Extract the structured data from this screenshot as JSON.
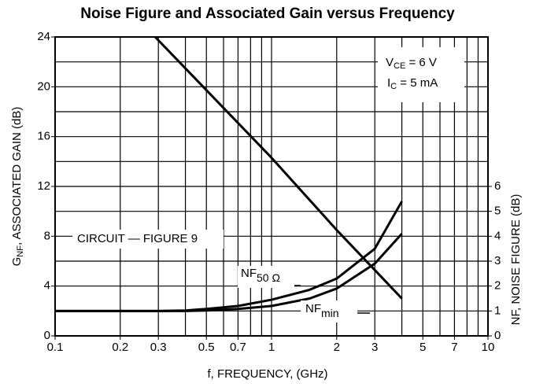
{
  "chart_data": {
    "type": "line",
    "title": "Noise Figure and Associated Gain versus Frequency",
    "xlabel": "f, FREQUENCY, (GHz)",
    "ylabel": {
      "main": "G",
      "sub": "NF",
      "rest": ", ASSOCIATED GAIN (dB)"
    },
    "y2label": "NF, NOISE FIGURE (dB)",
    "xscale": "log",
    "xlim": [
      0.1,
      10
    ],
    "xticks": [
      0.1,
      0.2,
      0.3,
      0.5,
      0.7,
      1,
      2,
      3,
      5,
      7,
      10
    ],
    "xgrid": [
      0.2,
      0.3,
      0.4,
      0.5,
      0.6,
      0.7,
      0.8,
      0.9,
      1,
      2,
      3,
      4,
      5,
      6,
      7,
      8,
      9
    ],
    "ylim": [
      0,
      24
    ],
    "yticks": [
      0,
      4,
      8,
      12,
      16,
      20,
      24
    ],
    "ygrid": [
      2,
      4,
      6,
      8,
      10,
      12,
      14,
      16,
      18,
      20,
      22
    ],
    "y2lim": [
      0,
      12
    ],
    "y2ticks": [
      0,
      1,
      2,
      3,
      4,
      5,
      6
    ],
    "series": [
      {
        "name": "Gain",
        "color": "#000000",
        "x": [
          0.29,
          1,
          2,
          4
        ],
        "values": [
          24,
          14.3,
          8.5,
          3
        ]
      },
      {
        "name": "NF50",
        "color": "#000000",
        "axis": "y2",
        "x": [
          0.1,
          0.2,
          0.3,
          0.4,
          0.5,
          0.7,
          1,
          1.5,
          2,
          3,
          4
        ],
        "values": [
          1,
          1,
          1,
          1.02,
          1.08,
          1.2,
          1.45,
          1.85,
          2.3,
          3.5,
          5.4
        ]
      },
      {
        "name": "NFmin",
        "color": "#000000",
        "axis": "y2",
        "x": [
          0.1,
          0.2,
          0.3,
          0.4,
          0.5,
          0.7,
          1,
          1.5,
          2,
          3,
          4
        ],
        "values": [
          1,
          1,
          1,
          1,
          1.02,
          1.08,
          1.2,
          1.5,
          1.9,
          2.9,
          4.1
        ]
      }
    ],
    "annotations": {
      "vce": {
        "main": "V",
        "sub": "CE",
        "rest": " = 6 V"
      },
      "ic": {
        "main": "I",
        "sub": "C",
        "rest": " = 5 mA"
      },
      "circuit": "CIRCUIT — FIGURE 9",
      "nf50": {
        "main": "NF",
        "sub": "50 Ω"
      },
      "nfmin": {
        "main": "NF",
        "sub": "min"
      }
    }
  }
}
